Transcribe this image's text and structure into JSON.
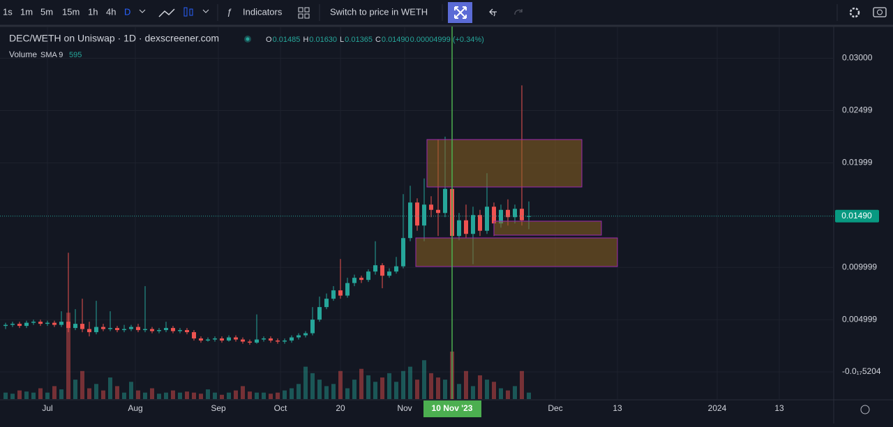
{
  "toolbar": {
    "intervals": [
      "1s",
      "1m",
      "5m",
      "15m",
      "1h",
      "4h",
      "D"
    ],
    "indicators": "Indicators",
    "switch_price": "Switch to price in WETH"
  },
  "legend": {
    "title": "DEC/WETH on Uniswap · 1D · dexscreener.com",
    "ohlc": [
      {
        "key": "O",
        "value": "0.01485"
      },
      {
        "key": "H",
        "value": "0.01630"
      },
      {
        "key": "L",
        "value": "0.01365"
      },
      {
        "key": "C",
        "value": "0.01490"
      }
    ],
    "change": "0.00004999 (+0.34%)",
    "volume": {
      "name": "Volume",
      "sma": "SMA 9",
      "value": "595"
    }
  },
  "chart_data": {
    "type": "candlestick",
    "up_color": "#26a69a",
    "down_color": "#ef5350",
    "open": [
      0.0044,
      0.0045,
      0.0046,
      0.0044,
      0.0047,
      0.0048,
      0.0046,
      0.0047,
      0.0045,
      0.0048,
      0.0042,
      0.0046,
      0.0041,
      0.0038,
      0.0043,
      0.0041,
      0.0042,
      0.004,
      0.0041,
      0.0043,
      0.004,
      0.0041,
      0.0039,
      0.004,
      0.0042,
      0.0039,
      0.004,
      0.0038,
      0.0032,
      0.003,
      0.0031,
      0.0032,
      0.003,
      0.0033,
      0.0031,
      0.0029,
      0.0028,
      0.0031,
      0.0032,
      0.003,
      0.0029,
      0.003,
      0.0033,
      0.0035,
      0.0037,
      0.005,
      0.0062,
      0.007,
      0.0078,
      0.0073,
      0.0085,
      0.009,
      0.0088,
      0.0096,
      0.0102,
      0.0092,
      0.0096,
      0.0101,
      0.0128,
      0.0162,
      0.014,
      0.016,
      0.0155,
      0.0152,
      0.0175,
      0.013,
      0.0145,
      0.0132,
      0.015,
      0.0135,
      0.0158,
      0.0142,
      0.0155,
      0.0148,
      0.0156,
      0.01485
    ],
    "high": [
      0.0047,
      0.0048,
      0.0048,
      0.0049,
      0.005,
      0.005,
      0.0049,
      0.0049,
      0.0058,
      0.0114,
      0.006,
      0.007,
      0.0048,
      0.0068,
      0.0046,
      0.0058,
      0.0044,
      0.0045,
      0.0045,
      0.0046,
      0.0082,
      0.0043,
      0.0042,
      0.0048,
      0.0044,
      0.0042,
      0.0042,
      0.004,
      0.0034,
      0.0033,
      0.0034,
      0.0034,
      0.0035,
      0.0035,
      0.0033,
      0.0031,
      0.0055,
      0.0034,
      0.0034,
      0.0032,
      0.0032,
      0.0035,
      0.0037,
      0.0039,
      0.0062,
      0.0072,
      0.0075,
      0.0082,
      0.0108,
      0.009,
      0.0093,
      0.0092,
      0.0098,
      0.0125,
      0.0104,
      0.0099,
      0.011,
      0.017,
      0.0178,
      0.0166,
      0.0185,
      0.0168,
      0.0222,
      0.0225,
      0.022,
      0.0152,
      0.016,
      0.0158,
      0.0155,
      0.019,
      0.0162,
      0.016,
      0.0165,
      0.016,
      0.0274,
      0.0163
    ],
    "low": [
      0.0041,
      0.0043,
      0.0042,
      0.0042,
      0.0045,
      0.0044,
      0.0044,
      0.0043,
      0.0043,
      0.0038,
      0.004,
      0.0038,
      0.0034,
      0.0036,
      0.0039,
      0.0039,
      0.0038,
      0.0038,
      0.0039,
      0.0038,
      0.0038,
      0.0037,
      0.0037,
      0.0038,
      0.0037,
      0.0037,
      0.0036,
      0.003,
      0.0028,
      0.0029,
      0.0029,
      0.0028,
      0.0029,
      0.0029,
      0.0027,
      0.0026,
      0.0027,
      0.0029,
      0.0028,
      0.0027,
      0.0027,
      0.0028,
      0.0031,
      0.0033,
      0.0035,
      0.0048,
      0.006,
      0.0068,
      0.007,
      0.0071,
      0.0082,
      0.0085,
      0.0086,
      0.0093,
      0.008,
      0.009,
      0.0094,
      0.0099,
      0.0125,
      0.0135,
      0.0125,
      0.0148,
      0.013,
      0.0148,
      0.012,
      0.0126,
      0.0128,
      0.0103,
      0.013,
      0.0132,
      0.013,
      0.0138,
      0.014,
      0.0142,
      0.014,
      0.01365
    ],
    "close": [
      0.0045,
      0.0046,
      0.0044,
      0.0047,
      0.0048,
      0.0046,
      0.0047,
      0.0045,
      0.0048,
      0.0042,
      0.0046,
      0.0041,
      0.0038,
      0.0043,
      0.0041,
      0.0042,
      0.004,
      0.0041,
      0.0043,
      0.004,
      0.0041,
      0.0039,
      0.004,
      0.0042,
      0.0039,
      0.004,
      0.0038,
      0.0032,
      0.003,
      0.0031,
      0.0032,
      0.003,
      0.0033,
      0.0031,
      0.0029,
      0.0028,
      0.0031,
      0.0032,
      0.003,
      0.0029,
      0.003,
      0.0033,
      0.0035,
      0.0037,
      0.005,
      0.0062,
      0.007,
      0.0078,
      0.0073,
      0.0085,
      0.009,
      0.0088,
      0.0096,
      0.0102,
      0.0092,
      0.0096,
      0.0101,
      0.0128,
      0.0162,
      0.014,
      0.016,
      0.0155,
      0.0152,
      0.0175,
      0.013,
      0.0145,
      0.0132,
      0.015,
      0.0135,
      0.0158,
      0.0142,
      0.0155,
      0.0148,
      0.0156,
      0.0145,
      0.0149
    ],
    "volume": [
      300,
      250,
      400,
      350,
      300,
      500,
      300,
      600,
      450,
      4000,
      900,
      1300,
      500,
      700,
      400,
      1000,
      600,
      300,
      800,
      400,
      300,
      500,
      250,
      300,
      400,
      300,
      350,
      300,
      250,
      450,
      300,
      200,
      300,
      400,
      600,
      350,
      300,
      300,
      250,
      300,
      400,
      500,
      700,
      1500,
      1200,
      900,
      600,
      700,
      1300,
      500,
      900,
      1400,
      1100,
      800,
      1000,
      1200,
      800,
      1300,
      1500,
      900,
      1800,
      1200,
      1000,
      900,
      2200,
      700,
      1300,
      600,
      1100,
      900,
      800,
      500,
      400,
      600,
      1300,
      300
    ],
    "vlim": [
      0,
      4200
    ],
    "xlim": [
      -0.8,
      118.7
    ],
    "xticks": [
      {
        "value": 6,
        "label": "Jul"
      },
      {
        "value": 18.6,
        "label": "Aug"
      },
      {
        "value": 30.5,
        "label": "Sep"
      },
      {
        "value": 39.4,
        "label": "Oct"
      },
      {
        "value": 48,
        "label": "20"
      },
      {
        "value": 57.2,
        "label": "Nov"
      },
      {
        "value": 78.8,
        "label": "Dec"
      },
      {
        "value": 87.7,
        "label": "13"
      },
      {
        "value": 102,
        "label": "2024"
      },
      {
        "value": 110.9,
        "label": "13"
      }
    ],
    "ylim": [
      -0.0026,
      0.0329
    ],
    "yticks": [
      {
        "value": 0.03,
        "label": "0.03000"
      },
      0.02499,
      0.01999,
      0.009999,
      0.004999,
      {
        "value": -5.204e-18,
        "label": "-0.0₁₇5204"
      }
    ],
    "last_price": {
      "value": 0.0149,
      "label": "0.01490"
    },
    "crosshair": {
      "value": 64,
      "label": "10 Nov '23"
    },
    "grid": true
  }
}
